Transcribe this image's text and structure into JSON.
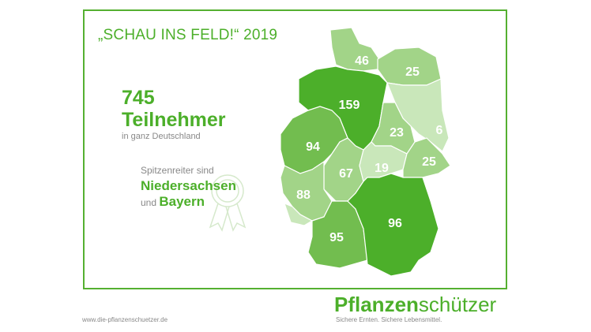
{
  "title": "„SCHAU INS FELD!“ 2019",
  "summary": {
    "total": "745",
    "total_label": "Teilnehmer",
    "subtitle": "in ganz Deutschland"
  },
  "leaders": {
    "intro": "Spitzenreiter sind",
    "first": "Niedersachsen",
    "connector": "und",
    "second": "Bayern",
    "icon": "award-ribbon-icon"
  },
  "map": {
    "colors": {
      "dark": "#4caf2a",
      "medium": "#72bd4f",
      "light": "#a2d488",
      "lightest": "#c9e7ba"
    },
    "regions": [
      {
        "id": "schleswig-holstein",
        "value": "46"
      },
      {
        "id": "mecklenburg-vorpommern",
        "value": "25"
      },
      {
        "id": "niedersachsen",
        "value": "159"
      },
      {
        "id": "brandenburg",
        "value": "6"
      },
      {
        "id": "sachsen-anhalt",
        "value": "23"
      },
      {
        "id": "nordrhein-westfalen",
        "value": "94"
      },
      {
        "id": "hessen",
        "value": "67"
      },
      {
        "id": "thueringen",
        "value": "19"
      },
      {
        "id": "sachsen",
        "value": "25"
      },
      {
        "id": "rheinland-pfalz",
        "value": "88"
      },
      {
        "id": "baden-wuerttemberg",
        "value": "95"
      },
      {
        "id": "bayern",
        "value": "96"
      }
    ]
  },
  "footer": {
    "url": "www.die-pflanzenschuetzer.de",
    "logo_bold": "Pflanzen",
    "logo_regular": "schützer",
    "tagline": "Sichere Ernten. Sichere Lebensmittel."
  }
}
